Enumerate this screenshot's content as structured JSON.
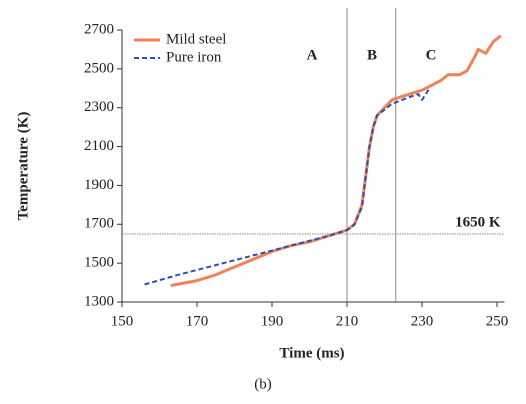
{
  "chart_data": {
    "type": "line",
    "xlabel": "Time (ms)",
    "ylabel": "Temperature (K)",
    "caption": "(b)",
    "xlim": [
      150,
      252
    ],
    "xticks": [
      150,
      170,
      190,
      210,
      230,
      250
    ],
    "ylim": [
      1300,
      2700
    ],
    "yticks": [
      1300,
      1500,
      1700,
      1900,
      2100,
      2300,
      2500,
      2700
    ],
    "vlines": [
      210,
      223
    ],
    "hline": {
      "value": 1650,
      "label": "1650 K"
    },
    "regions": [
      "A",
      "B",
      "C"
    ],
    "legend": "upper left",
    "series": [
      {
        "name": "Mild steel",
        "color": "#f0825a",
        "style": "solid",
        "x": [
          163,
          170,
          175,
          180,
          185,
          190,
          195,
          200,
          205,
          210,
          212,
          214,
          215,
          216,
          217,
          218,
          220,
          222,
          225,
          230,
          233,
          235,
          237,
          240,
          242,
          244,
          245,
          247,
          249,
          251
        ],
        "values": [
          1385,
          1410,
          1440,
          1480,
          1520,
          1560,
          1590,
          1610,
          1640,
          1670,
          1700,
          1800,
          1950,
          2100,
          2200,
          2260,
          2300,
          2340,
          2360,
          2390,
          2420,
          2440,
          2470,
          2470,
          2490,
          2560,
          2600,
          2580,
          2640,
          2670
        ]
      },
      {
        "name": "Pure iron",
        "color": "#2a4fb0",
        "style": "dashed",
        "x": [
          156,
          165,
          175,
          185,
          195,
          205,
          210,
          212,
          214,
          215,
          216,
          217,
          218,
          220,
          222,
          226,
          229,
          230,
          232
        ],
        "values": [
          1390,
          1440,
          1490,
          1540,
          1590,
          1640,
          1670,
          1700,
          1790,
          1950,
          2100,
          2200,
          2260,
          2290,
          2320,
          2350,
          2370,
          2340,
          2400
        ]
      }
    ]
  }
}
